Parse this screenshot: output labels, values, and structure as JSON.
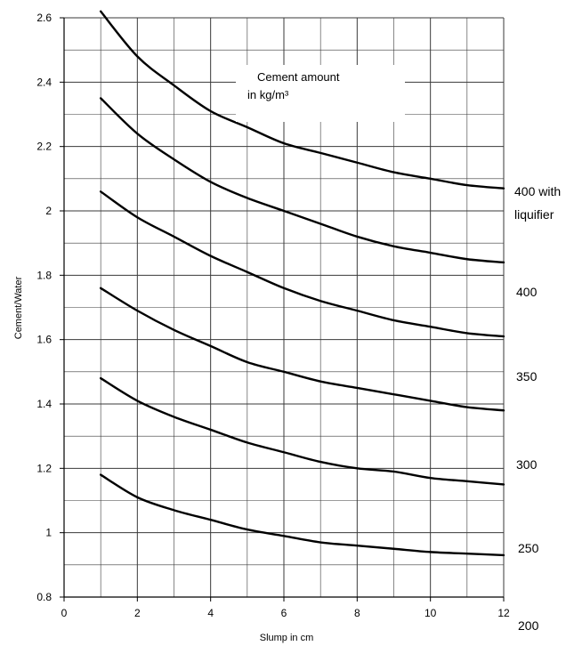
{
  "chart_data": {
    "type": "line",
    "title": "",
    "xlabel": "Slump in cm",
    "ylabel": "Cement/Water",
    "xlim": [
      0,
      12
    ],
    "ylim": [
      0.8,
      2.6
    ],
    "x_ticks": [
      "0",
      "2",
      "4",
      "6",
      "8",
      "10",
      "12"
    ],
    "y_ticks": [
      "0.8",
      "1",
      "1.2",
      "1.4",
      "1.6",
      "1.8",
      "2",
      "2.2",
      "2.4",
      "2.6"
    ],
    "grid": true,
    "annotation": [
      "Cement amount",
      "in kg/m³"
    ],
    "series_labels": [
      [
        "400 with",
        "liquifier"
      ],
      [
        "400"
      ],
      [
        "350"
      ],
      [
        "300"
      ],
      [
        "250"
      ],
      [
        "200"
      ]
    ],
    "series": [
      {
        "name": "400 with liquifier",
        "x": [
          1,
          2,
          3,
          4,
          5,
          6,
          7,
          8,
          9,
          10,
          11,
          12
        ],
        "values": [
          2.62,
          2.48,
          2.39,
          2.31,
          2.26,
          2.21,
          2.18,
          2.15,
          2.12,
          2.1,
          2.08,
          2.07
        ]
      },
      {
        "name": "400",
        "x": [
          1,
          2,
          3,
          4,
          5,
          6,
          7,
          8,
          9,
          10,
          11,
          12
        ],
        "values": [
          2.35,
          2.24,
          2.16,
          2.09,
          2.04,
          2.0,
          1.96,
          1.92,
          1.89,
          1.87,
          1.85,
          1.84
        ]
      },
      {
        "name": "350",
        "x": [
          1,
          2,
          3,
          4,
          5,
          6,
          7,
          8,
          9,
          10,
          11,
          12
        ],
        "values": [
          2.06,
          1.98,
          1.92,
          1.86,
          1.81,
          1.76,
          1.72,
          1.69,
          1.66,
          1.64,
          1.62,
          1.61
        ]
      },
      {
        "name": "300",
        "x": [
          1,
          2,
          3,
          4,
          5,
          6,
          7,
          8,
          9,
          10,
          11,
          12
        ],
        "values": [
          1.76,
          1.69,
          1.63,
          1.58,
          1.53,
          1.5,
          1.47,
          1.45,
          1.43,
          1.41,
          1.39,
          1.38
        ]
      },
      {
        "name": "250",
        "x": [
          1,
          2,
          3,
          4,
          5,
          6,
          7,
          8,
          9,
          10,
          11,
          12
        ],
        "values": [
          1.48,
          1.41,
          1.36,
          1.32,
          1.28,
          1.25,
          1.22,
          1.2,
          1.19,
          1.17,
          1.16,
          1.15
        ]
      },
      {
        "name": "200",
        "x": [
          1,
          2,
          3,
          4,
          5,
          6,
          7,
          8,
          9,
          10,
          11,
          12
        ],
        "values": [
          1.18,
          1.11,
          1.07,
          1.04,
          1.01,
          0.99,
          0.97,
          0.96,
          0.95,
          0.94,
          0.935,
          0.93
        ]
      }
    ]
  }
}
